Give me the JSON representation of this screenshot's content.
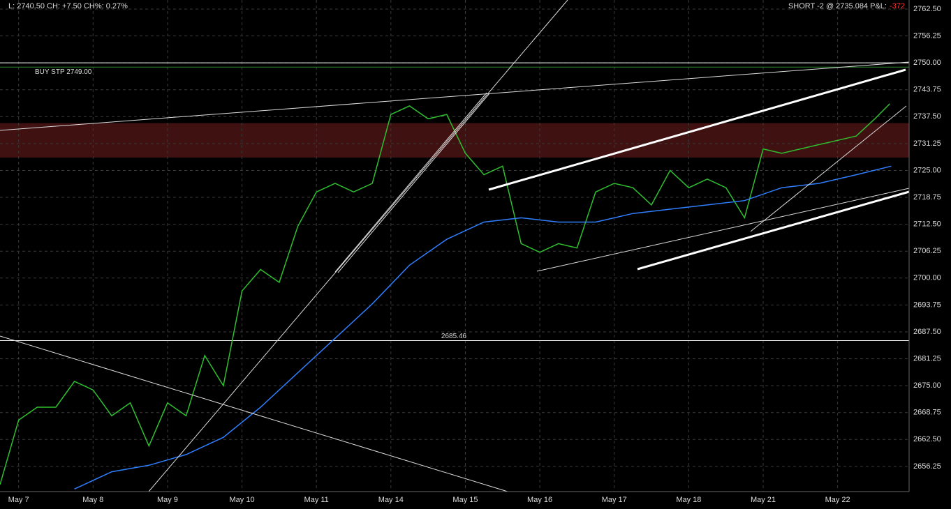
{
  "header": {
    "left": "L: 2740.50 CH: +7.50 CH%: 0.27%",
    "right": "SHORT -2 @ 2735.084 P&L:",
    "pnl": "-372"
  },
  "chart_data": {
    "type": "line",
    "xlim": [
      -0.25,
      11.96
    ],
    "xticks": [
      {
        "value": 0,
        "label": "May 7"
      },
      {
        "value": 1,
        "label": "May 8"
      },
      {
        "value": 2,
        "label": "May 9"
      },
      {
        "value": 3,
        "label": "May 10"
      },
      {
        "value": 4,
        "label": "May 11"
      },
      {
        "value": 5,
        "label": "May 14"
      },
      {
        "value": 6,
        "label": "May 15"
      },
      {
        "value": 7,
        "label": "May 16"
      },
      {
        "value": 8,
        "label": "May 17"
      },
      {
        "value": 9,
        "label": "May 18"
      },
      {
        "value": 10,
        "label": "May 21"
      },
      {
        "value": 11,
        "label": "May 22"
      }
    ],
    "ylim": [
      2650.4,
      2764.6
    ],
    "yticks": [
      2656.25,
      {
        "value": 2662.5,
        "label": "2662.50"
      },
      2668.75,
      {
        "value": 2675,
        "label": "2675.00"
      },
      2681.25,
      {
        "value": 2687.5,
        "label": "2687.50"
      },
      2693.75,
      {
        "value": 2700,
        "label": "2700.00"
      },
      2706.25,
      {
        "value": 2712.5,
        "label": "2712.50"
      },
      2718.75,
      {
        "value": 2725,
        "label": "2725.00"
      },
      2731.25,
      {
        "value": 2737.5,
        "label": "2737.50"
      },
      2743.75,
      {
        "value": 2750,
        "label": "2750.00"
      },
      2756.25,
      {
        "value": 2762.5,
        "label": "2762.50"
      }
    ],
    "grid": true,
    "zone": [
      2728,
      2736
    ],
    "levels": [
      {
        "value": 2750,
        "color": "#ffffff"
      },
      {
        "value": 2749,
        "label": "BUY STP 2749.00",
        "color": "#2e8b2e"
      },
      {
        "value": 2685.46,
        "color": "#ffffff"
      }
    ],
    "series": [
      {
        "color": "#2fbf2f",
        "x": [
          -0.25,
          0,
          0.25,
          0.5,
          0.75,
          1,
          1.25,
          1.5,
          1.75,
          2,
          2.25,
          2.5,
          2.75,
          3,
          3.25,
          3.5,
          3.75,
          4,
          4.25,
          4.5,
          4.75,
          5,
          5.25,
          5.5,
          5.75,
          6,
          6.25,
          6.5,
          6.75,
          7,
          7.25,
          7.5,
          7.75,
          8,
          8.25,
          8.5,
          8.75,
          9,
          9.25,
          9.5,
          9.75,
          10,
          10.25,
          10.5,
          10.75,
          11,
          11.25,
          11.5,
          11.7
        ],
        "values": [
          2652,
          2667,
          2670,
          2670,
          2676,
          2674,
          2668,
          2671,
          2661,
          2671,
          2668,
          2682,
          2675,
          2697,
          2702,
          2699,
          2712,
          2720,
          2722,
          2720,
          2722,
          2738,
          2740,
          2737,
          2738,
          2729,
          2724,
          2726,
          2708,
          2706,
          2708,
          2707,
          2720,
          2722,
          2721,
          2717,
          2725,
          2721,
          2723,
          2721,
          2714,
          2730,
          2729,
          2730,
          2731,
          2732,
          2733,
          2737,
          2740.5
        ]
      },
      {
        "color": "#2f7fff",
        "x": [
          0.75,
          1.25,
          1.75,
          2.25,
          2.75,
          3.25,
          3.75,
          4.25,
          4.75,
          5.25,
          5.75,
          6.25,
          6.75,
          7.25,
          7.75,
          8.25,
          8.75,
          9.25,
          9.75,
          10.25,
          10.75,
          11.25,
          11.72
        ],
        "values": [
          2651,
          2655,
          2656.5,
          2659,
          2663,
          2670,
          2678,
          2686,
          2694,
          2703,
          2709,
          2713,
          2714,
          2713,
          2713,
          2715,
          2716,
          2717,
          2718,
          2721,
          2722,
          2724,
          2726
        ]
      }
    ]
  }
}
